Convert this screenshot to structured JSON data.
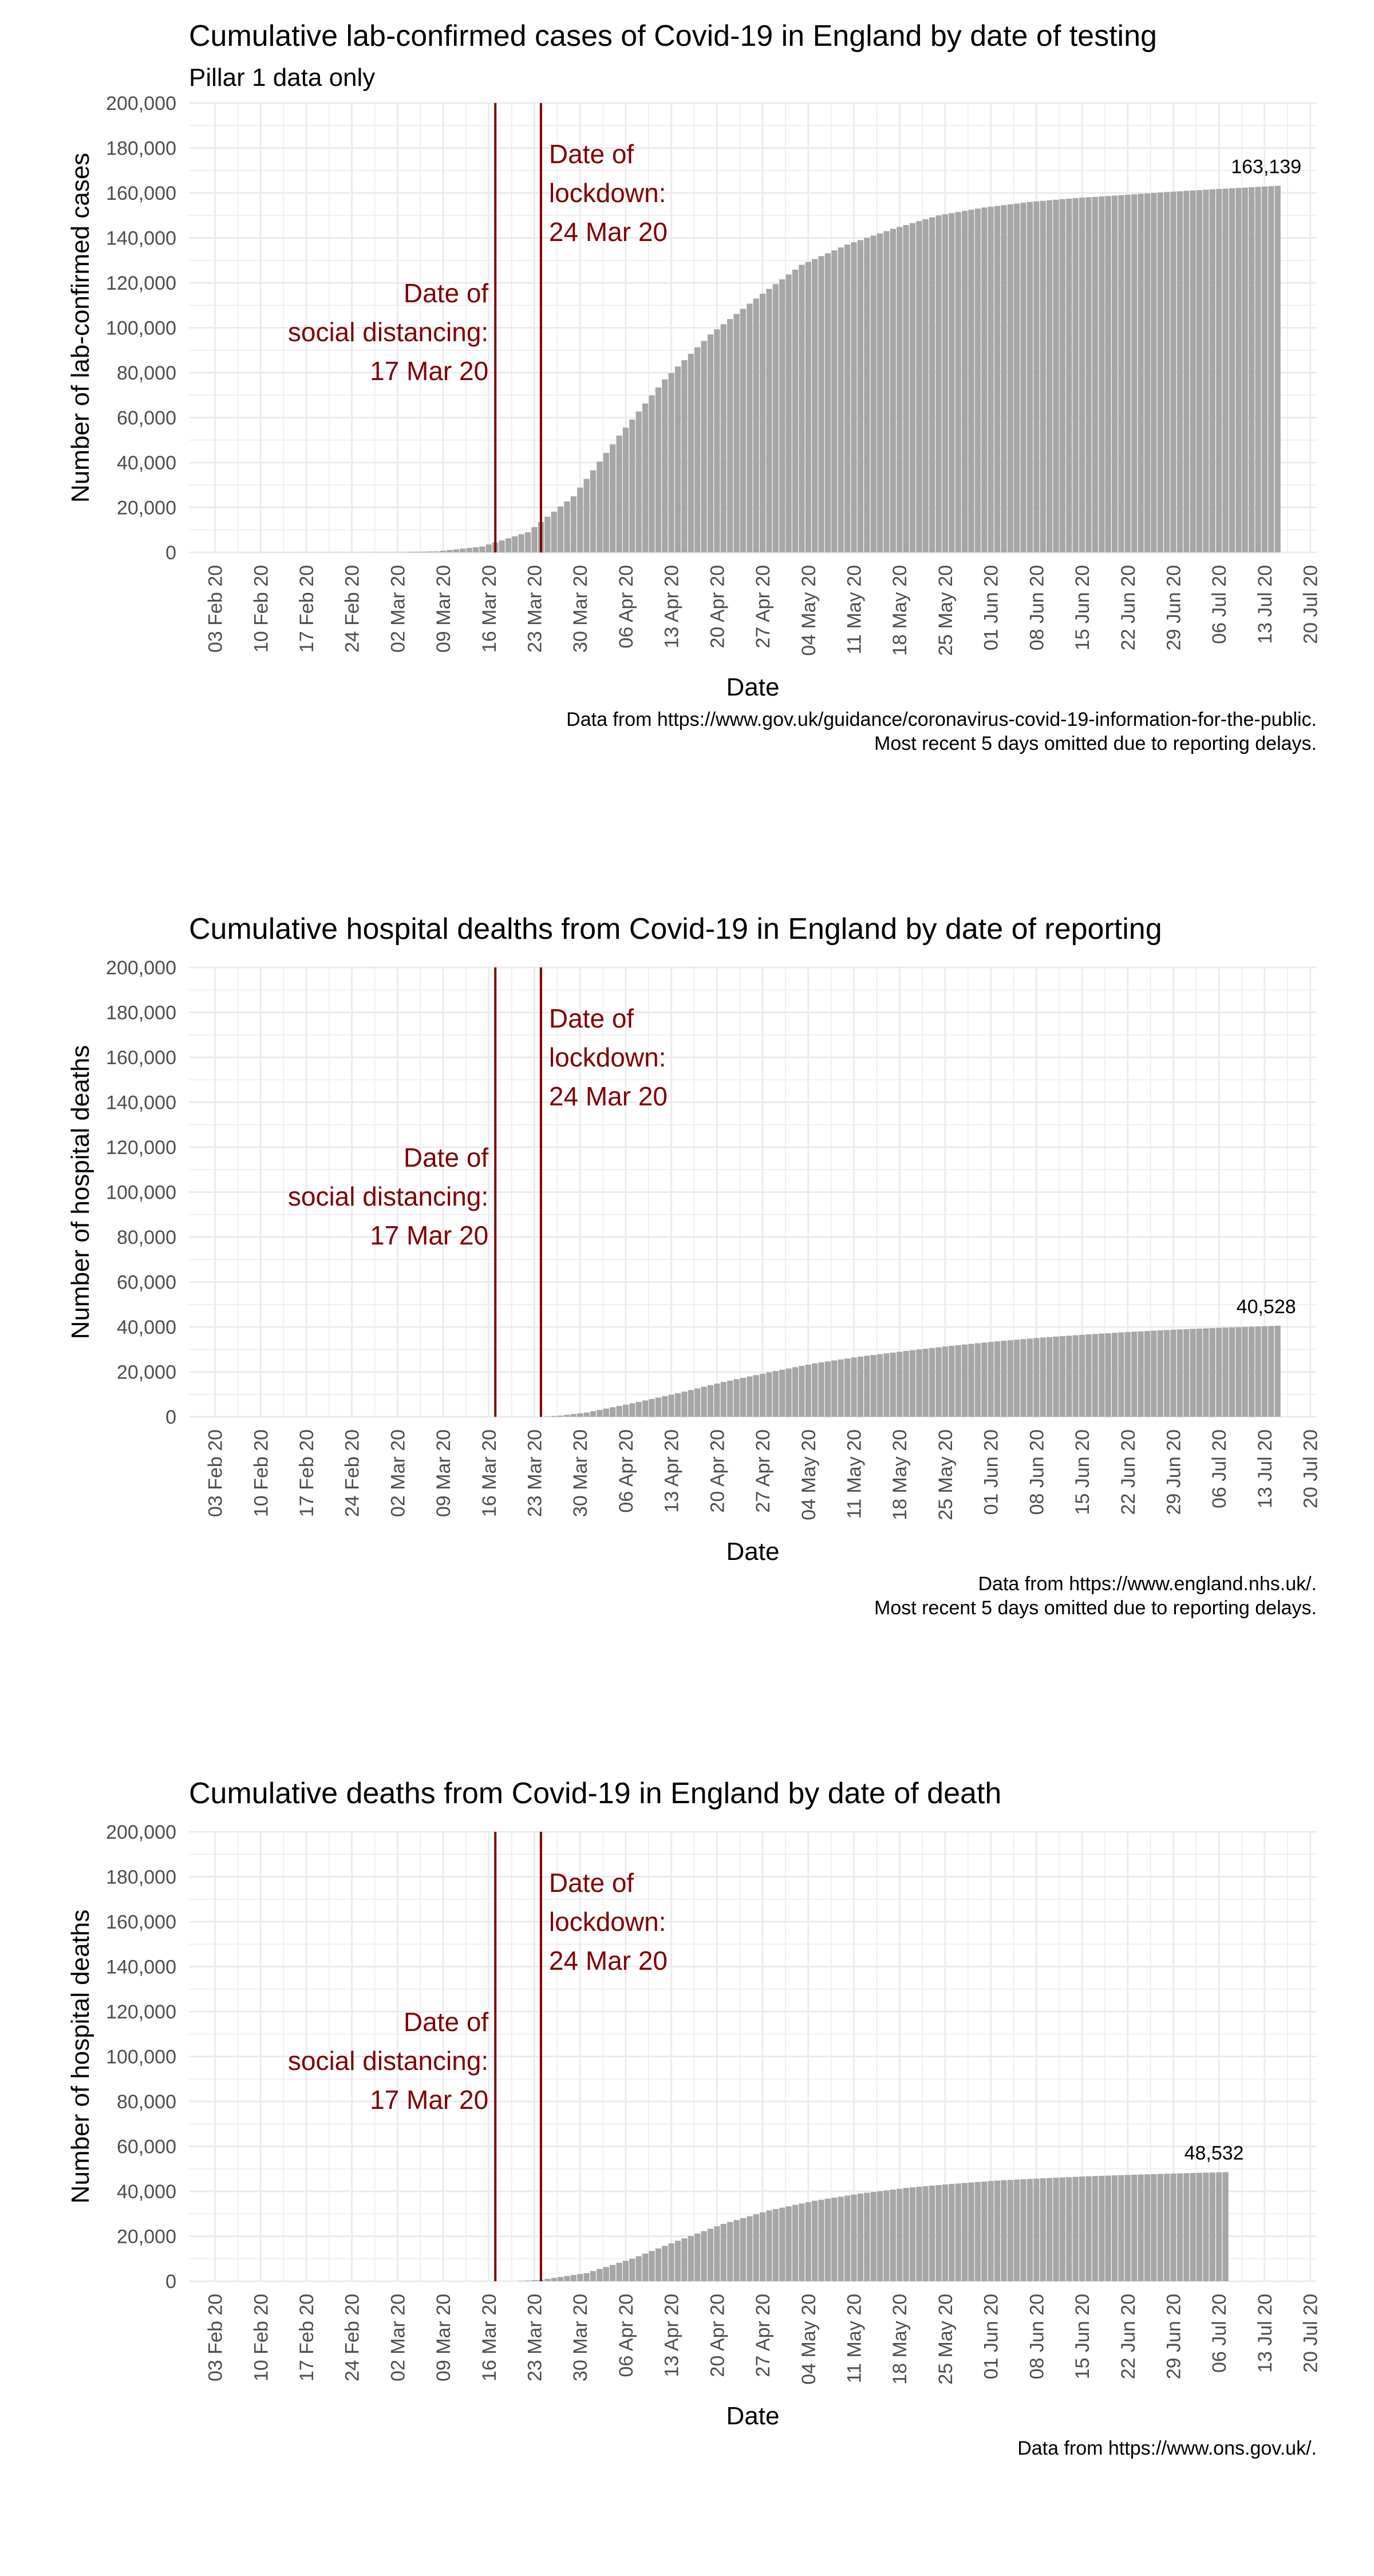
{
  "colors": {
    "bar": "#a6a6a6",
    "annotation": "#800000",
    "grid": "#ebebeb",
    "tick_text": "#4d4d4d"
  },
  "chart_data": [
    {
      "type": "bar",
      "title": "Cumulative lab-confirmed cases of Covid-19 in England by date of testing",
      "subtitle": "Pillar 1 data only",
      "xlabel": "Date",
      "ylabel": "Number of lab-confirmed cases",
      "x_tick_labels": [
        "03 Feb 20",
        "10 Feb 20",
        "17 Feb 20",
        "24 Feb 20",
        "02 Mar 20",
        "09 Mar 20",
        "16 Mar 20",
        "23 Mar 20",
        "30 Mar 20",
        "06 Apr 20",
        "13 Apr 20",
        "20 Apr 20",
        "27 Apr 20",
        "04 May 20",
        "11 May 20",
        "18 May 20",
        "25 May 20",
        "01 Jun 20",
        "08 Jun 20",
        "15 Jun 20",
        "22 Jun 20",
        "29 Jun 20",
        "06 Jul 20",
        "13 Jul 20",
        "20 Jul 20"
      ],
      "x_range": [
        "30 Jan 20",
        "21 Jul 20"
      ],
      "y_tick_labels": [
        "0",
        "20,000",
        "40,000",
        "60,000",
        "80,000",
        "100,000",
        "120,000",
        "140,000",
        "160,000",
        "180,000",
        "200,000"
      ],
      "ylim": [
        0,
        200000
      ],
      "grid": true,
      "bar_range": [
        "31 Jan 20",
        "15 Jul 20"
      ],
      "points": [
        [
          "31 Jan 20",
          0
        ],
        [
          "01 Mar 20",
          100
        ],
        [
          "08 Mar 20",
          450
        ],
        [
          "15 Mar 20",
          2600
        ],
        [
          "22 Mar 20",
          9000
        ],
        [
          "29 Mar 20",
          25000
        ],
        [
          "05 Apr 20",
          52000
        ],
        [
          "12 Apr 20",
          77000
        ],
        [
          "19 Apr 20",
          97000
        ],
        [
          "26 Apr 20",
          113000
        ],
        [
          "03 May 20",
          128000
        ],
        [
          "10 May 20",
          137000
        ],
        [
          "17 May 20",
          144000
        ],
        [
          "24 May 20",
          150000
        ],
        [
          "31 May 20",
          153500
        ],
        [
          "07 Jun 20",
          156000
        ],
        [
          "14 Jun 20",
          157700
        ],
        [
          "21 Jun 20",
          159000
        ],
        [
          "28 Jun 20",
          160400
        ],
        [
          "05 Jul 20",
          161600
        ],
        [
          "15 Jul 20",
          163139
        ]
      ],
      "end_label": "163,139",
      "end_value": 163139,
      "events": [
        {
          "label": "Date of\nsocial distancing:\n17 Mar 20",
          "date": "17 Mar 20",
          "align": "left"
        },
        {
          "label": "Date of\nlockdown:\n24 Mar 20",
          "date": "24 Mar 20",
          "align": "right"
        }
      ],
      "caption": [
        "Data from https://www.gov.uk/guidance/coronavirus-covid-19-information-for-the-public.",
        "Most recent 5 days omitted due to reporting delays."
      ]
    },
    {
      "type": "bar",
      "title": "Cumulative hospital dealths from Covid-19 in England by date of reporting",
      "xlabel": "Date",
      "ylabel": "Number of hospital deaths",
      "x_tick_labels": [
        "03 Feb 20",
        "10 Feb 20",
        "17 Feb 20",
        "24 Feb 20",
        "02 Mar 20",
        "09 Mar 20",
        "16 Mar 20",
        "23 Mar 20",
        "30 Mar 20",
        "06 Apr 20",
        "13 Apr 20",
        "20 Apr 20",
        "27 Apr 20",
        "04 May 20",
        "11 May 20",
        "18 May 20",
        "25 May 20",
        "01 Jun 20",
        "08 Jun 20",
        "15 Jun 20",
        "22 Jun 20",
        "29 Jun 20",
        "06 Jul 20",
        "13 Jul 20",
        "20 Jul 20"
      ],
      "x_range": [
        "30 Jan 20",
        "21 Jul 20"
      ],
      "y_tick_labels": [
        "0",
        "20,000",
        "40,000",
        "60,000",
        "80,000",
        "100,000",
        "120,000",
        "140,000",
        "160,000",
        "180,000",
        "200,000"
      ],
      "ylim": [
        0,
        200000
      ],
      "grid": true,
      "bar_range": [
        "24 Mar 20",
        "15 Jul 20"
      ],
      "points": [
        [
          "24 Mar 20",
          0
        ],
        [
          "27 Mar 20",
          550
        ],
        [
          "31 Mar 20",
          1900
        ],
        [
          "07 Apr 20",
          6000
        ],
        [
          "14 Apr 20",
          10500
        ],
        [
          "21 Apr 20",
          15500
        ],
        [
          "28 Apr 20",
          19800
        ],
        [
          "05 May 20",
          23800
        ],
        [
          "12 May 20",
          26800
        ],
        [
          "19 May 20",
          29300
        ],
        [
          "26 May 20",
          31600
        ],
        [
          "02 Jun 20",
          33600
        ],
        [
          "09 Jun 20",
          35300
        ],
        [
          "16 Jun 20",
          36700
        ],
        [
          "23 Jun 20",
          37900
        ],
        [
          "30 Jun 20",
          38900
        ],
        [
          "07 Jul 20",
          39700
        ],
        [
          "15 Jul 20",
          40528
        ]
      ],
      "end_label": "40,528",
      "end_value": 40528,
      "events": [
        {
          "label": "Date of\nsocial distancing:\n17 Mar 20",
          "date": "17 Mar 20",
          "align": "left"
        },
        {
          "label": "Date of\nlockdown:\n24 Mar 20",
          "date": "24 Mar 20",
          "align": "right"
        }
      ],
      "caption": [
        "Data from https://www.england.nhs.uk/.",
        "Most recent 5 days omitted due to reporting delays."
      ]
    },
    {
      "type": "bar",
      "title": "Cumulative deaths from Covid-19 in England by date of death",
      "xlabel": "Date",
      "ylabel": "Number of hospital deaths",
      "x_tick_labels": [
        "03 Feb 20",
        "10 Feb 20",
        "17 Feb 20",
        "24 Feb 20",
        "02 Mar 20",
        "09 Mar 20",
        "16 Mar 20",
        "23 Mar 20",
        "30 Mar 20",
        "06 Apr 20",
        "13 Apr 20",
        "20 Apr 20",
        "27 Apr 20",
        "04 May 20",
        "11 May 20",
        "18 May 20",
        "25 May 20",
        "01 Jun 20",
        "08 Jun 20",
        "15 Jun 20",
        "22 Jun 20",
        "29 Jun 20",
        "06 Jul 20",
        "13 Jul 20",
        "20 Jul 20"
      ],
      "x_range": [
        "30 Jan 20",
        "21 Jul 20"
      ],
      "y_tick_labels": [
        "0",
        "20,000",
        "40,000",
        "60,000",
        "80,000",
        "100,000",
        "120,000",
        "140,000",
        "160,000",
        "180,000",
        "200,000"
      ],
      "ylim": [
        0,
        200000
      ],
      "grid": true,
      "bar_range": [
        "20 Mar 20",
        "07 Jul 20"
      ],
      "points": [
        [
          "20 Mar 20",
          0
        ],
        [
          "24 Mar 20",
          600
        ],
        [
          "31 Mar 20",
          3600
        ],
        [
          "07 Apr 20",
          10000
        ],
        [
          "14 Apr 20",
          18000
        ],
        [
          "21 Apr 20",
          25500
        ],
        [
          "28 Apr 20",
          31500
        ],
        [
          "05 May 20",
          35800
        ],
        [
          "12 May 20",
          39000
        ],
        [
          "19 May 20",
          41500
        ],
        [
          "26 May 20",
          43300
        ],
        [
          "02 Jun 20",
          44800
        ],
        [
          "09 Jun 20",
          45800
        ],
        [
          "16 Jun 20",
          46700
        ],
        [
          "23 Jun 20",
          47400
        ],
        [
          "30 Jun 20",
          48000
        ],
        [
          "07 Jul 20",
          48532
        ]
      ],
      "end_label": "48,532",
      "end_value": 48532,
      "events": [
        {
          "label": "Date of\nsocial distancing:\n17 Mar 20",
          "date": "17 Mar 20",
          "align": "left"
        },
        {
          "label": "Date of\nlockdown:\n24 Mar 20",
          "date": "24 Mar 20",
          "align": "right"
        }
      ],
      "caption": [
        "Data from https://www.ons.gov.uk/."
      ]
    }
  ]
}
